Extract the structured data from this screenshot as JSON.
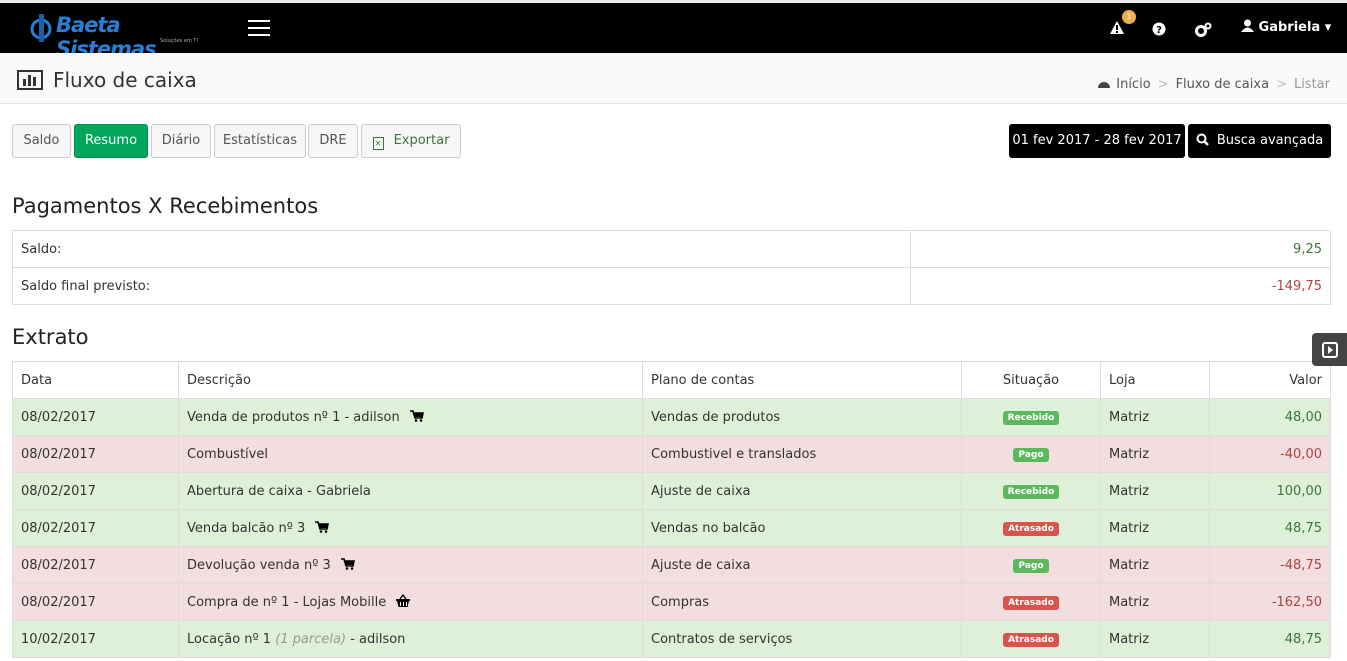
{
  "navbar": {
    "brand": "Baeta Sistemas",
    "brand_tagline": "Soluções em TI",
    "notification_count": "1",
    "user": "Gabriela"
  },
  "header": {
    "title": "Fluxo de caixa",
    "breadcrumb": [
      "Início",
      "Fluxo de caixa",
      "Listar"
    ]
  },
  "tabs": {
    "items": [
      "Saldo",
      "Resumo",
      "Diário",
      "Estatísticas",
      "DRE",
      "Exportar"
    ],
    "active": 1
  },
  "date_range": "01 fev 2017 - 28 fev 2017",
  "search_button": "Busca avançada",
  "summary": {
    "title": "Pagamentos X Recebimentos",
    "rows": [
      {
        "label": "Saldo:",
        "value": "9,25",
        "value_color": "#3c763d"
      },
      {
        "label": "Saldo final previsto:",
        "value": "-149,75",
        "value_color": "#a94442"
      }
    ]
  },
  "statement": {
    "title": "Extrato",
    "columns": [
      "Data",
      "Descrição",
      "Plano de contas",
      "Situação",
      "Loja",
      "Valor"
    ],
    "rows": [
      {
        "date": "08/02/2017",
        "description": "Venda de produtos nº 1 - adilson",
        "icon": "cart",
        "account": "Vendas de produtos",
        "status": "Recebido",
        "status_color": "#5cb85c",
        "store": "Matriz",
        "value": "48,00",
        "row_color": "#dff0d8",
        "value_color": "#3c763d"
      },
      {
        "date": "08/02/2017",
        "description": "Combustível",
        "account": "Combustivel e translados",
        "status": "Pago",
        "status_color": "#5cb85c",
        "store": "Matriz",
        "value": "-40,00",
        "row_color": "#f2dede",
        "value_color": "#a94442"
      },
      {
        "date": "08/02/2017",
        "description": "Abertura de caixa - Gabriela",
        "account": "Ajuste de caixa",
        "status": "Recebido",
        "status_color": "#5cb85c",
        "store": "Matriz",
        "value": "100,00",
        "row_color": "#dff0d8",
        "value_color": "#3c763d"
      },
      {
        "date": "08/02/2017",
        "description": "Venda balcão nº 3",
        "icon": "cart",
        "account": "Vendas no balcão",
        "status": "Atrasado",
        "status_color": "#d9534f",
        "store": "Matriz",
        "value": "48,75",
        "row_color": "#dff0d8",
        "value_color": "#3c763d"
      },
      {
        "date": "08/02/2017",
        "description": "Devolução venda nº 3",
        "icon": "cart",
        "account": "Ajuste de caixa",
        "status": "Pago",
        "status_color": "#5cb85c",
        "store": "Matriz",
        "value": "-48,75",
        "row_color": "#f2dede",
        "value_color": "#a94442"
      },
      {
        "date": "08/02/2017",
        "description": "Compra de nº 1 - Lojas Mobille",
        "icon": "basket",
        "account": "Compras",
        "status": "Atrasado",
        "status_color": "#d9534f",
        "store": "Matriz",
        "value": "-162,50",
        "row_color": "#f2dede",
        "value_color": "#a94442"
      },
      {
        "date": "10/02/2017",
        "description": "Locação nº 1",
        "note": "(1 parcela)",
        "suffix": "- adilson",
        "account": "Contratos de serviços",
        "status": "Atrasado",
        "status_color": "#d9534f",
        "store": "Matriz",
        "value": "48,75",
        "row_color": "#dff0d8",
        "value_color": "#3c763d"
      }
    ]
  }
}
